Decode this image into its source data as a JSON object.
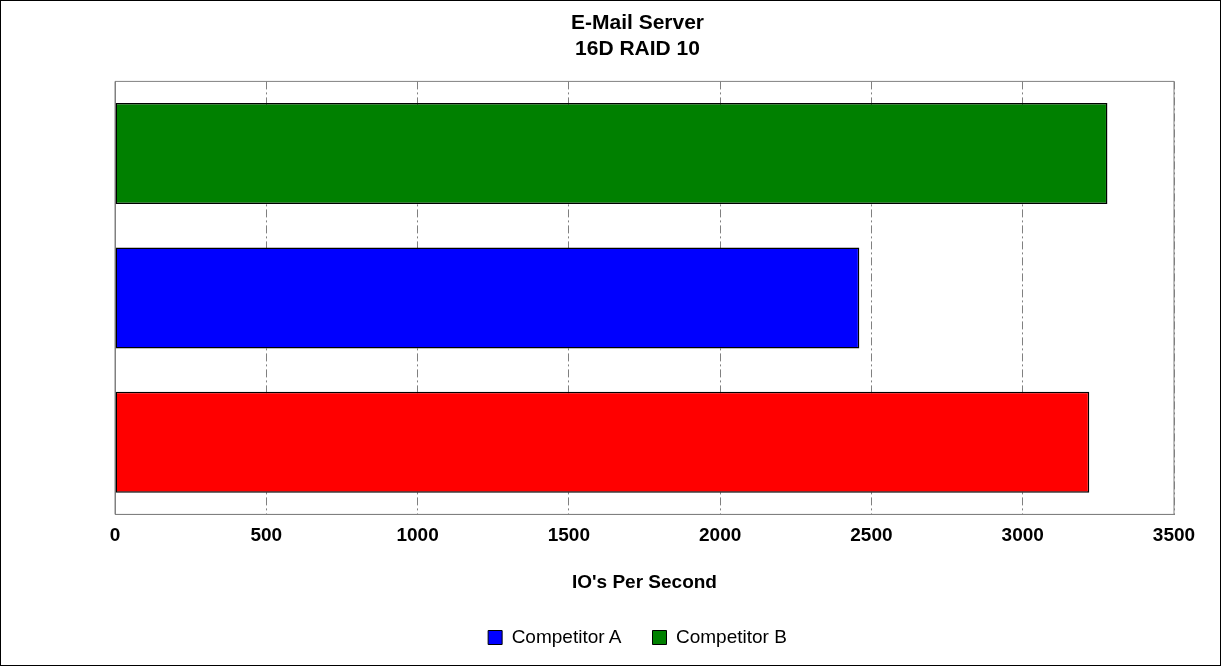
{
  "chart_data": {
    "type": "bar",
    "orientation": "horizontal",
    "title": [
      "E-Mail Server",
      "16D RAID 10"
    ],
    "xlabel": "IO's Per Second",
    "categories": [
      null,
      null,
      null
    ],
    "series": [
      {
        "color": "#ff0000",
        "values": [
          null,
          null,
          3220
        ]
      },
      {
        "name": "Competitor A",
        "color": "#0000ff",
        "values": [
          null,
          2460,
          null
        ]
      },
      {
        "name": "Competitor B",
        "color": "#008000",
        "values": [
          3280,
          null,
          null
        ]
      }
    ],
    "xlim": [
      0,
      3500
    ],
    "xticks": [
      0,
      500,
      1000,
      1500,
      2000,
      2500,
      3000,
      3500
    ],
    "grid": "x",
    "legend": "bottom"
  }
}
